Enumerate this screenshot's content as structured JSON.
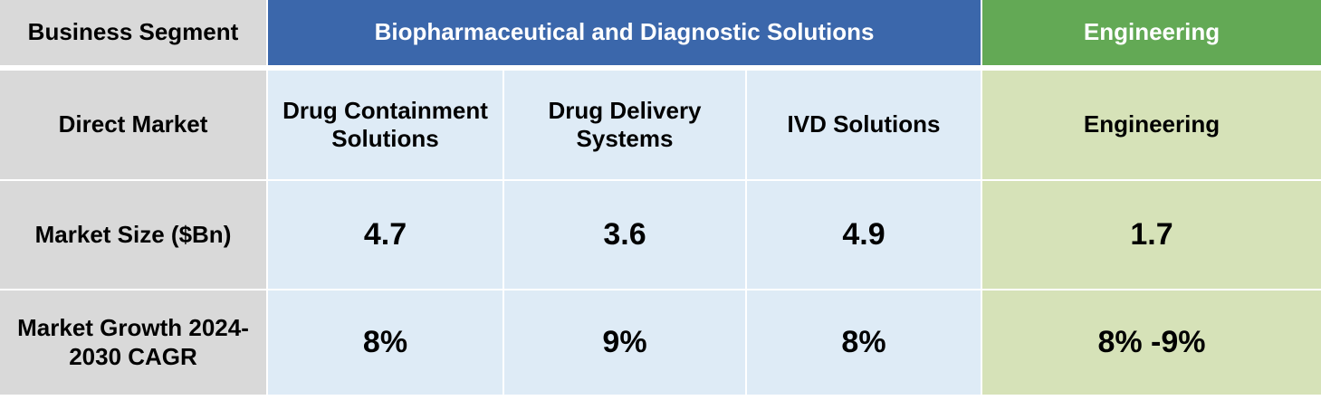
{
  "header": {
    "label": "Business Segment",
    "biopharma": "Biopharmaceutical and Diagnostic Solutions",
    "engineering": "Engineering"
  },
  "rows": {
    "direct_market": {
      "label": "Direct Market",
      "drug_containment": "Drug Containment Solutions",
      "drug_delivery": "Drug Delivery Systems",
      "ivd": "IVD Solutions",
      "engineering": "Engineering"
    },
    "market_size": {
      "label": "Market Size ($Bn)",
      "drug_containment": "4.7",
      "drug_delivery": "3.6",
      "ivd": "4.9",
      "engineering": "1.7"
    },
    "market_growth": {
      "label": "Market Growth 2024-2030 CAGR",
      "drug_containment": "8%",
      "drug_delivery": "9%",
      "ivd": "8%",
      "engineering": "8% -9%"
    }
  },
  "colors": {
    "biopharma_header": "#3b67ab",
    "engineering_header": "#63a955",
    "biopharma_cell": "#deebf6",
    "engineering_cell": "#d6e2b8",
    "label_cell": "#d9d9d9"
  }
}
